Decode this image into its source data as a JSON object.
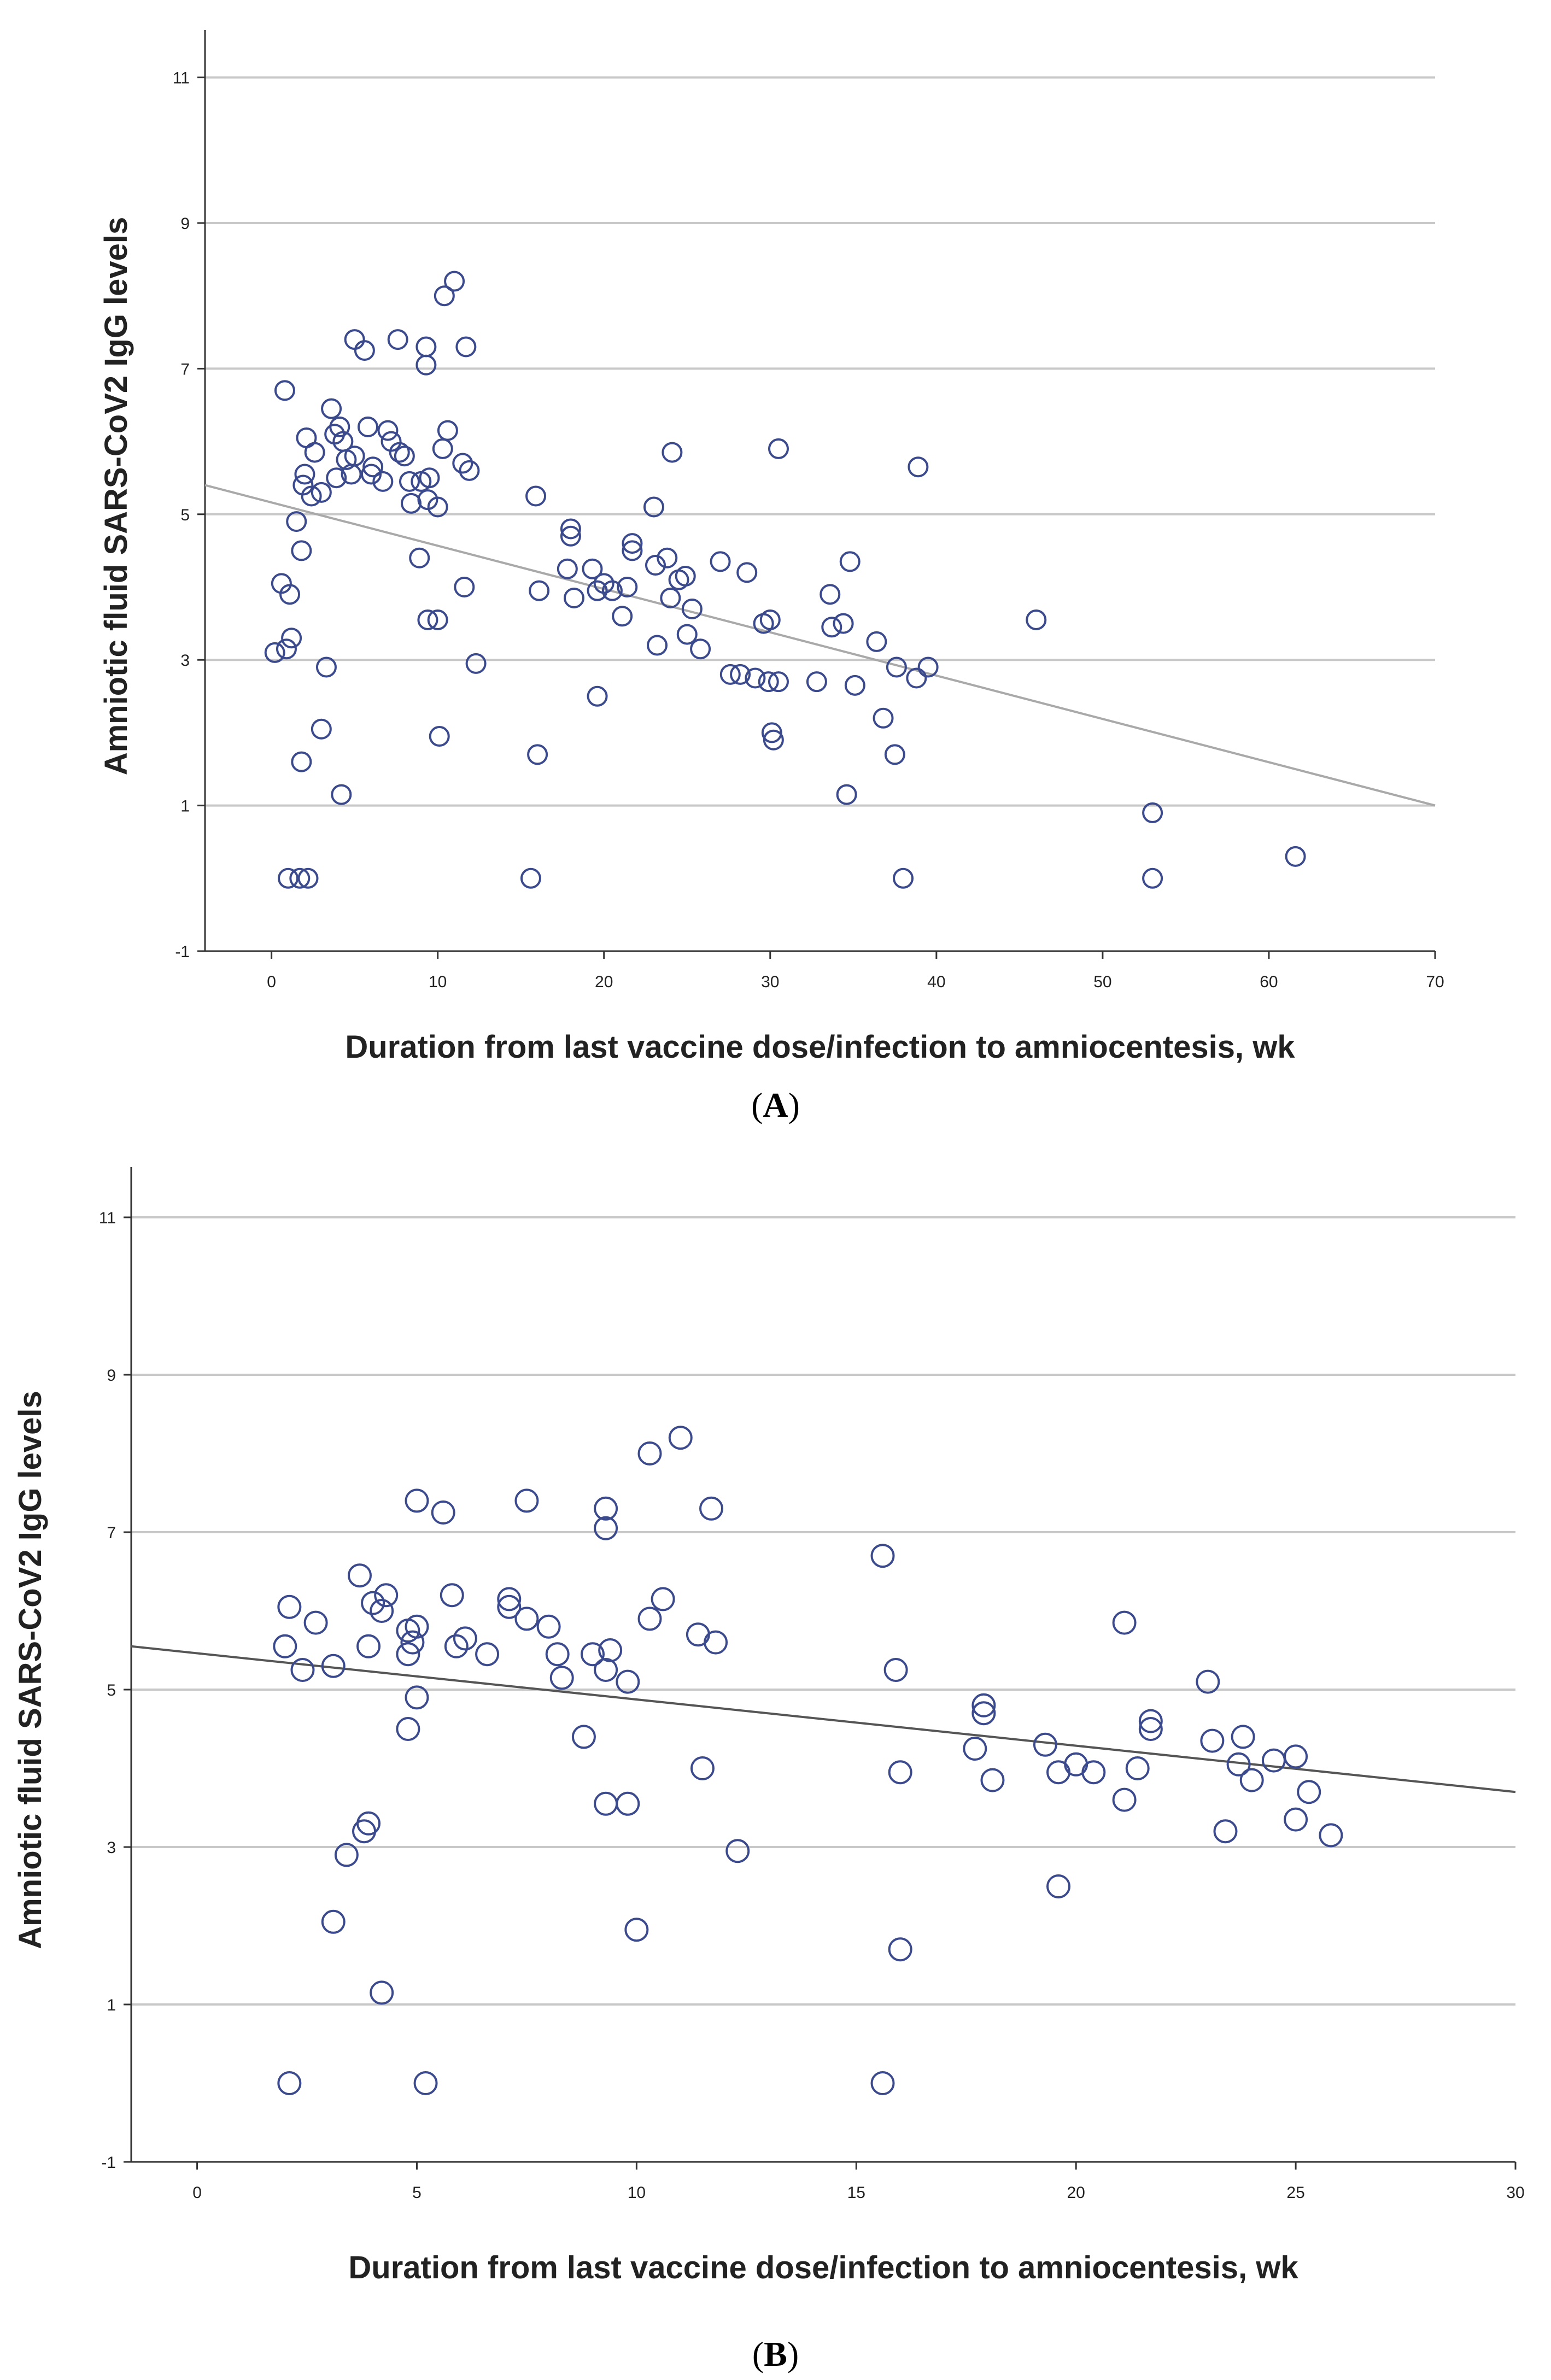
{
  "chart_data": [
    {
      "panel": "A",
      "type": "scatter",
      "xlabel": "Duration from last vaccine dose/infection to amniocentesis, wk",
      "ylabel": "Amniotic fluid SARS-CoV2 IgG levels",
      "xlim": [
        -4,
        70
      ],
      "ylim": [
        -1,
        11.5
      ],
      "xticks": [
        "0",
        "10",
        "20",
        "30",
        "40",
        "50",
        "60",
        "70"
      ],
      "yticks": [
        "-1",
        "1",
        "3",
        "5",
        "7",
        "9",
        "11"
      ],
      "grid": "horizontal",
      "fit_line": {
        "x": [
          -4,
          70
        ],
        "y": [
          5.4,
          1.0
        ]
      },
      "points": [
        [
          0.2,
          3.1
        ],
        [
          0.6,
          4.05
        ],
        [
          0.8,
          6.7
        ],
        [
          0.9,
          3.15
        ],
        [
          1.0,
          0.0
        ],
        [
          1.1,
          3.9
        ],
        [
          1.2,
          3.3
        ],
        [
          1.5,
          4.9
        ],
        [
          1.7,
          0.0
        ],
        [
          1.8,
          4.5
        ],
        [
          1.8,
          1.6
        ],
        [
          1.9,
          5.4
        ],
        [
          2.0,
          5.55
        ],
        [
          2.1,
          6.05
        ],
        [
          2.2,
          0.0
        ],
        [
          2.4,
          5.25
        ],
        [
          2.6,
          5.85
        ],
        [
          3.0,
          5.3
        ],
        [
          3.0,
          2.05
        ],
        [
          3.3,
          2.9
        ],
        [
          3.6,
          6.45
        ],
        [
          3.8,
          6.1
        ],
        [
          3.9,
          5.5
        ],
        [
          4.1,
          6.2
        ],
        [
          4.2,
          1.15
        ],
        [
          4.3,
          6.0
        ],
        [
          4.5,
          5.75
        ],
        [
          4.8,
          5.55
        ],
        [
          5.0,
          7.4
        ],
        [
          5.0,
          5.8
        ],
        [
          5.6,
          7.25
        ],
        [
          5.8,
          6.2
        ],
        [
          6.0,
          5.55
        ],
        [
          6.1,
          5.65
        ],
        [
          6.7,
          5.45
        ],
        [
          7.0,
          6.15
        ],
        [
          7.2,
          6.0
        ],
        [
          7.6,
          7.4
        ],
        [
          7.7,
          5.85
        ],
        [
          8.0,
          5.8
        ],
        [
          8.3,
          5.45
        ],
        [
          8.4,
          5.15
        ],
        [
          8.9,
          4.4
        ],
        [
          9.0,
          5.45
        ],
        [
          9.3,
          7.3
        ],
        [
          9.3,
          7.05
        ],
        [
          9.4,
          5.2
        ],
        [
          9.5,
          5.5
        ],
        [
          9.4,
          3.55
        ],
        [
          10.0,
          5.1
        ],
        [
          10.0,
          3.55
        ],
        [
          10.1,
          1.95
        ],
        [
          10.3,
          5.9
        ],
        [
          10.4,
          8.0
        ],
        [
          10.6,
          6.15
        ],
        [
          11.0,
          8.2
        ],
        [
          11.5,
          5.7
        ],
        [
          11.6,
          4.0
        ],
        [
          11.7,
          7.3
        ],
        [
          11.9,
          5.6
        ],
        [
          12.3,
          2.95
        ],
        [
          15.6,
          0.0
        ],
        [
          15.9,
          5.25
        ],
        [
          16.1,
          3.95
        ],
        [
          16.0,
          1.7
        ],
        [
          17.8,
          4.25
        ],
        [
          18.0,
          4.7
        ],
        [
          18.0,
          4.8
        ],
        [
          18.2,
          3.85
        ],
        [
          19.3,
          4.25
        ],
        [
          19.6,
          3.95
        ],
        [
          19.6,
          2.5
        ],
        [
          20.0,
          4.05
        ],
        [
          20.5,
          3.95
        ],
        [
          21.1,
          3.6
        ],
        [
          21.4,
          4.0
        ],
        [
          21.7,
          4.5
        ],
        [
          21.7,
          4.6
        ],
        [
          23.0,
          5.1
        ],
        [
          23.1,
          4.3
        ],
        [
          23.2,
          3.2
        ],
        [
          23.8,
          4.4
        ],
        [
          24.0,
          3.85
        ],
        [
          24.5,
          4.1
        ],
        [
          24.9,
          4.15
        ],
        [
          25.0,
          3.35
        ],
        [
          25.3,
          3.7
        ],
        [
          25.8,
          3.15
        ],
        [
          24.1,
          5.85
        ],
        [
          27.0,
          4.35
        ],
        [
          27.6,
          2.8
        ],
        [
          28.2,
          2.8
        ],
        [
          28.6,
          4.2
        ],
        [
          29.1,
          2.75
        ],
        [
          29.6,
          3.5
        ],
        [
          29.9,
          2.7
        ],
        [
          30.0,
          3.55
        ],
        [
          30.1,
          2.0
        ],
        [
          30.2,
          1.9
        ],
        [
          30.5,
          2.7
        ],
        [
          30.5,
          5.9
        ],
        [
          32.8,
          2.7
        ],
        [
          33.6,
          3.9
        ],
        [
          33.7,
          3.45
        ],
        [
          34.4,
          3.5
        ],
        [
          34.6,
          1.15
        ],
        [
          34.8,
          4.35
        ],
        [
          35.1,
          2.65
        ],
        [
          36.4,
          3.25
        ],
        [
          36.8,
          2.2
        ],
        [
          37.5,
          1.7
        ],
        [
          37.6,
          2.9
        ],
        [
          38.0,
          0.0
        ],
        [
          38.8,
          2.75
        ],
        [
          38.9,
          5.65
        ],
        [
          39.5,
          2.9
        ],
        [
          46.0,
          3.55
        ],
        [
          53.0,
          0.9
        ],
        [
          53.0,
          0.0
        ],
        [
          61.6,
          0.3
        ]
      ]
    },
    {
      "panel": "B",
      "type": "scatter",
      "xlabel": "Duration from last vaccine dose/infection to amniocentesis, wk",
      "ylabel": "Amniotic fluid SARS-CoV2 IgG levels",
      "xlim": [
        -1.5,
        30
      ],
      "ylim": [
        -1,
        11.5
      ],
      "xticks": [
        "0",
        "5",
        "10",
        "15",
        "20",
        "25",
        "30"
      ],
      "yticks": [
        "-1",
        "1",
        "3",
        "5",
        "7",
        "9",
        "11"
      ],
      "grid": "horizontal",
      "fit_line": {
        "x": [
          -1.5,
          30
        ],
        "y": [
          5.55,
          3.7
        ]
      },
      "points": [
        [
          2.0,
          5.55
        ],
        [
          2.1,
          6.05
        ],
        [
          2.1,
          0.0
        ],
        [
          2.4,
          5.25
        ],
        [
          2.7,
          5.85
        ],
        [
          3.1,
          5.3
        ],
        [
          3.1,
          2.05
        ],
        [
          3.4,
          2.9
        ],
        [
          3.7,
          6.45
        ],
        [
          3.8,
          3.2
        ],
        [
          3.9,
          5.55
        ],
        [
          3.9,
          3.3
        ],
        [
          4.0,
          6.1
        ],
        [
          4.2,
          6.0
        ],
        [
          4.2,
          1.15
        ],
        [
          4.3,
          6.2
        ],
        [
          4.8,
          5.75
        ],
        [
          4.8,
          5.45
        ],
        [
          4.8,
          4.5
        ],
        [
          4.9,
          5.6
        ],
        [
          5.0,
          7.4
        ],
        [
          5.0,
          4.9
        ],
        [
          5.0,
          5.8
        ],
        [
          5.2,
          0.0
        ],
        [
          5.6,
          7.25
        ],
        [
          5.8,
          6.2
        ],
        [
          5.9,
          5.55
        ],
        [
          6.1,
          5.65
        ],
        [
          6.6,
          5.45
        ],
        [
          7.1,
          6.15
        ],
        [
          7.1,
          6.05
        ],
        [
          7.5,
          7.4
        ],
        [
          7.5,
          5.9
        ],
        [
          8.0,
          5.8
        ],
        [
          8.2,
          5.45
        ],
        [
          8.3,
          5.15
        ],
        [
          8.8,
          4.4
        ],
        [
          9.0,
          5.45
        ],
        [
          9.3,
          7.3
        ],
        [
          9.3,
          7.05
        ],
        [
          9.3,
          5.25
        ],
        [
          9.3,
          3.55
        ],
        [
          9.4,
          5.5
        ],
        [
          9.8,
          5.1
        ],
        [
          9.8,
          3.55
        ],
        [
          10.0,
          1.95
        ],
        [
          10.3,
          5.9
        ],
        [
          10.3,
          8.0
        ],
        [
          10.6,
          6.15
        ],
        [
          11.0,
          8.2
        ],
        [
          11.4,
          5.7
        ],
        [
          11.5,
          4.0
        ],
        [
          11.7,
          7.3
        ],
        [
          11.8,
          5.6
        ],
        [
          12.3,
          2.95
        ],
        [
          15.6,
          6.7
        ],
        [
          15.6,
          0.0
        ],
        [
          15.9,
          5.25
        ],
        [
          16.0,
          3.95
        ],
        [
          16.0,
          1.7
        ],
        [
          17.7,
          4.25
        ],
        [
          17.9,
          4.7
        ],
        [
          17.9,
          4.8
        ],
        [
          18.1,
          3.85
        ],
        [
          19.3,
          4.3
        ],
        [
          19.6,
          3.95
        ],
        [
          19.6,
          2.5
        ],
        [
          20.0,
          4.05
        ],
        [
          20.4,
          3.95
        ],
        [
          21.1,
          3.6
        ],
        [
          21.1,
          5.85
        ],
        [
          21.4,
          4.0
        ],
        [
          21.7,
          4.5
        ],
        [
          21.7,
          4.6
        ],
        [
          23.0,
          5.1
        ],
        [
          23.1,
          4.35
        ],
        [
          23.4,
          3.2
        ],
        [
          23.7,
          4.05
        ],
        [
          23.8,
          4.4
        ],
        [
          24.0,
          3.85
        ],
        [
          24.5,
          4.1
        ],
        [
          25.0,
          4.15
        ],
        [
          25.0,
          3.35
        ],
        [
          25.3,
          3.7
        ],
        [
          25.8,
          3.15
        ]
      ]
    }
  ],
  "panel_labels": {
    "a": "A",
    "b": "B"
  }
}
